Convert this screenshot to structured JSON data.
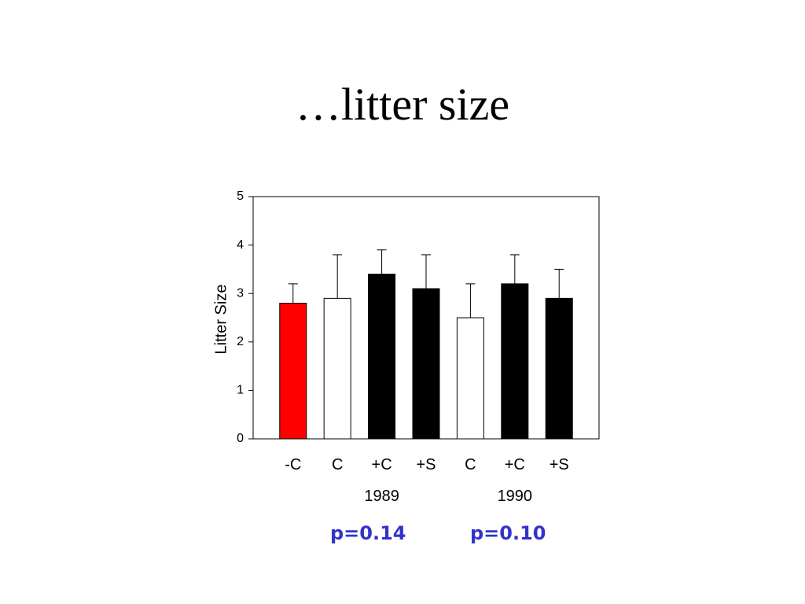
{
  "slide": {
    "title": "…litter size"
  },
  "chart_data": {
    "type": "bar",
    "title": "",
    "xlabel": "",
    "ylabel": "Litter Size",
    "ylim": [
      0,
      5
    ],
    "yticks": [
      0,
      1,
      2,
      3,
      4,
      5
    ],
    "grid": false,
    "categories": [
      "-C",
      "C",
      "+C",
      "+S",
      "C",
      "+C",
      "+S"
    ],
    "groups": [
      {
        "label": "1989",
        "members": [
          1,
          2,
          3
        ]
      },
      {
        "label": "1990",
        "members": [
          4,
          5,
          6
        ]
      }
    ],
    "values": [
      2.8,
      2.9,
      3.4,
      3.1,
      2.5,
      3.2,
      2.9
    ],
    "error_upper": [
      3.2,
      3.8,
      3.9,
      3.8,
      3.2,
      3.8,
      3.5
    ],
    "bar_colors": [
      "#ff0000",
      "#ffffff",
      "#000000",
      "#000000",
      "#ffffff",
      "#000000",
      "#000000"
    ]
  },
  "annotations": {
    "p_1989": "p=0.14",
    "p_1990": "p=0.10",
    "color": "#3333cc"
  }
}
